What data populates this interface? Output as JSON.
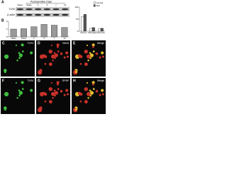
{
  "blot": {
    "panel": "A",
    "header": "Postoperative Days",
    "lanes": [
      "Naive",
      "Sham",
      "1",
      "3",
      "7",
      "14"
    ],
    "bands": [
      "TLR4",
      "β-actin"
    ]
  },
  "chart_data": [
    {
      "type": "bar",
      "panel": "B",
      "categories": [
        "Naive",
        "Sham",
        "1",
        "3",
        "7",
        "14"
      ],
      "values": [
        1.0,
        1.05,
        1.3,
        1.6,
        1.5,
        1.2
      ],
      "color": "#999999",
      "ylim": [
        0,
        2
      ],
      "yticks": [
        0,
        1,
        2
      ],
      "grid": false
    },
    {
      "type": "bar",
      "categories": [
        "Neuron",
        "Microglia",
        "Astrocyte"
      ],
      "series": [
        {
          "name": "Control",
          "color": "#ffffff",
          "values": [
            60,
            12,
            10
          ]
        },
        {
          "name": "SNI",
          "color": "#555555",
          "values": [
            70,
            15,
            12
          ]
        }
      ],
      "ylim": [
        0,
        100
      ],
      "yticks": [
        0,
        50,
        100
      ],
      "legend": "upper-right"
    }
  ],
  "images": [
    {
      "letter": "C",
      "stain": "TLR4",
      "color": "green"
    },
    {
      "letter": "D",
      "stain": "NeuN",
      "color": "red"
    },
    {
      "letter": "E",
      "stain": "Merge",
      "color": "merge"
    },
    {
      "letter": "F",
      "stain": "TLR4",
      "color": "green"
    },
    {
      "letter": "G",
      "stain": "GFAP",
      "color": "red"
    },
    {
      "letter": "H",
      "stain": "Merge",
      "color": "merge"
    }
  ]
}
